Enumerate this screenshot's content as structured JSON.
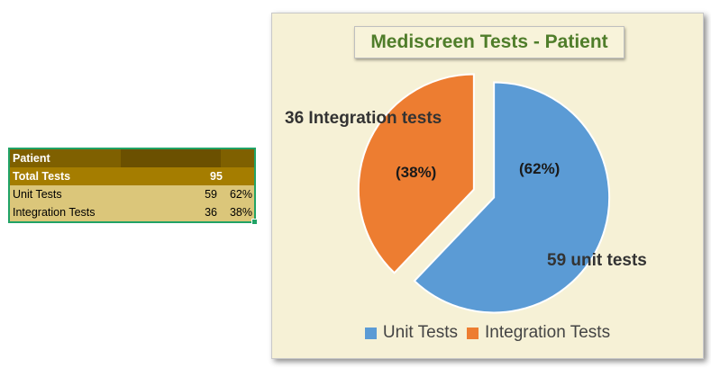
{
  "sheet": {
    "header": {
      "label": "Patient"
    },
    "rows": [
      {
        "label": "Total Tests",
        "value": "95",
        "pct": ""
      },
      {
        "label": "Unit Tests",
        "value": "59",
        "pct": "62%"
      },
      {
        "label": "Integration Tests",
        "value": "36",
        "pct": "38%"
      }
    ]
  },
  "chart_data": {
    "type": "pie",
    "title": "Mediscreen Tests - Patient",
    "exploded": true,
    "slices": [
      {
        "name": "Unit Tests",
        "value": 59,
        "percent": "(62%)",
        "data_label": "59 unit tests",
        "color": "#5b9bd5"
      },
      {
        "name": "Integration Tests",
        "value": 36,
        "percent": "(38%)",
        "data_label": "36 Integration tests",
        "color": "#ed7d31"
      }
    ],
    "legend": [
      "Unit Tests",
      "Integration Tests"
    ],
    "legend_position": "bottom"
  },
  "colors": {
    "chart_background": "#f6f1d6",
    "title_color": "#4f7d2a",
    "selection_border": "#21a366"
  }
}
